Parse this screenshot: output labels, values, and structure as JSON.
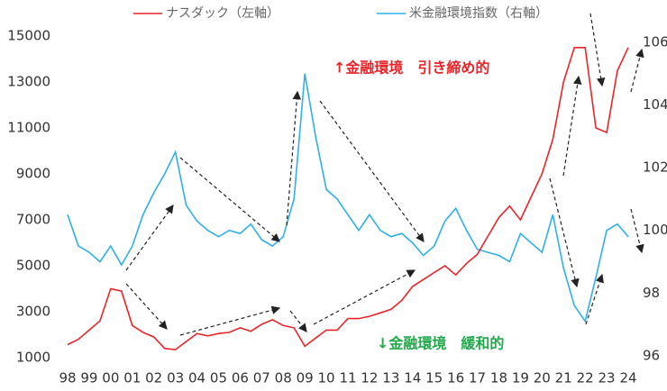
{
  "chart_data": {
    "type": "line",
    "categories": [
      "98",
      null,
      "99",
      null,
      "00",
      null,
      "01",
      null,
      "02",
      null,
      "03",
      null,
      "04",
      null,
      "05",
      null,
      "06",
      null,
      "07",
      null,
      "08",
      null,
      "09",
      null,
      "10",
      null,
      "11",
      null,
      "12",
      null,
      "13",
      null,
      "14",
      null,
      "15",
      null,
      "16",
      null,
      "17",
      null,
      "18",
      null,
      "19",
      null,
      "20",
      null,
      "21",
      null,
      "22",
      null,
      "23",
      null,
      "24"
    ],
    "series": [
      {
        "name": "ナスダック（左軸）",
        "color": "#e8252a",
        "values": [
          1570,
          1800,
          2200,
          2600,
          4000,
          3900,
          2400,
          2100,
          1900,
          1400,
          1350,
          1700,
          2050,
          1950,
          2050,
          2100,
          2300,
          2150,
          2450,
          2650,
          2400,
          2300,
          1500,
          1850,
          2200,
          2200,
          2700,
          2700,
          2800,
          2950,
          3100,
          3500,
          4100,
          4400,
          4700,
          5000,
          4600,
          5100,
          5500,
          6300,
          7100,
          7600,
          7000,
          8000,
          9000,
          10500,
          13000,
          14500,
          14500,
          11000,
          10800,
          13500,
          14500
        ]
      },
      {
        "name": "米金融環境指数（右軸）",
        "color": "#2eb0e8",
        "axis": "y2",
        "values": [
          100.5,
          99.5,
          99.3,
          99.0,
          99.5,
          98.9,
          99.5,
          100.5,
          101.2,
          101.8,
          102.5,
          100.8,
          100.3,
          100.0,
          99.8,
          100.0,
          99.9,
          100.2,
          99.7,
          99.5,
          99.8,
          101.0,
          105.0,
          103.0,
          101.3,
          101.0,
          100.5,
          100.0,
          100.5,
          100.0,
          99.8,
          99.9,
          99.6,
          99.2,
          99.5,
          100.3,
          100.7,
          100.0,
          99.4,
          99.3,
          99.2,
          99.0,
          99.9,
          99.6,
          99.3,
          100.5,
          98.8,
          97.6,
          97.1,
          98.5,
          100.0,
          100.2,
          99.8
        ]
      }
    ],
    "ylim": [
      1000,
      16000
    ],
    "yticks": [
      1000,
      3000,
      5000,
      7000,
      9000,
      11000,
      13000,
      15000
    ],
    "y2lim": [
      95.94,
      106.93
    ],
    "y2ticks": [
      96,
      98,
      100,
      102,
      104,
      106
    ],
    "annotations": [
      "↑金融環境　引き締め的",
      "↓金融環境　緩和的"
    ]
  }
}
